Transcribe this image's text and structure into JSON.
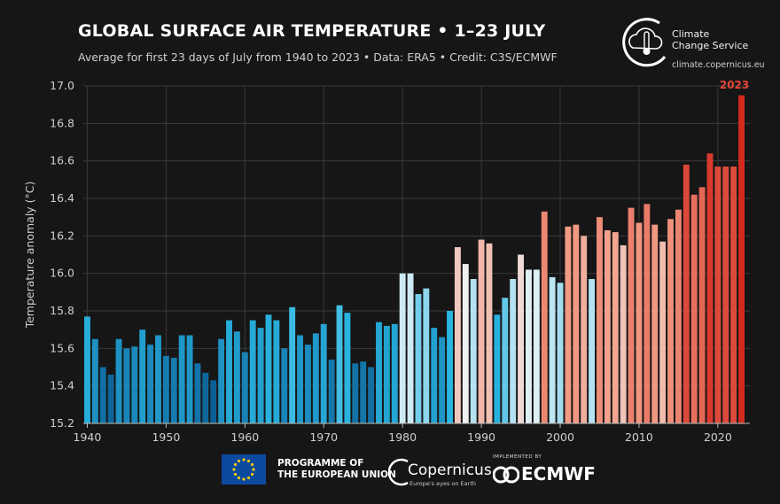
{
  "header": {
    "title": "GLOBAL SURFACE AIR TEMPERATURE • 1–23 JULY",
    "subtitle": "Average for first 23 days of July from 1940 to 2023 • Data: ERA5 • Credit: C3S/ECMWF"
  },
  "branding": {
    "c3s_name_line1": "Climate",
    "c3s_name_line2": "Change Service",
    "c3s_url": "climate.copernicus.eu"
  },
  "footer": {
    "eu_line1": "PROGRAMME OF",
    "eu_line2": "THE EUROPEAN UNION",
    "copernicus_name": "Copernicus",
    "copernicus_tagline": "Europe's eyes on Earth",
    "ecmwf_implemented": "IMPLEMENTED BY",
    "ecmwf_name": "ECMWF"
  },
  "chart_data": {
    "type": "bar",
    "title": "GLOBAL SURFACE AIR TEMPERATURE • 1–23 JULY",
    "ylabel": "Temperature anomaly (°C)",
    "xlabel": "",
    "ylim": [
      15.2,
      17.0
    ],
    "yticks": [
      15.2,
      15.4,
      15.6,
      15.8,
      16.0,
      16.2,
      16.4,
      16.6,
      16.8,
      17.0
    ],
    "xticks": [
      1940,
      1950,
      1960,
      1970,
      1980,
      1990,
      2000,
      2010,
      2020
    ],
    "grid": true,
    "highlight_label": "2023",
    "colors": {
      "background": "#161616",
      "grid": "#3a3a3a",
      "cold": "#0b5e96",
      "mid_cold": "#2ab6e2",
      "neutral": "#eef4f8",
      "warm": "#f29d86",
      "hot": "#d42a1e",
      "highlight_text": "#e8463a"
    },
    "x": [
      1940,
      1941,
      1942,
      1943,
      1944,
      1945,
      1946,
      1947,
      1948,
      1949,
      1950,
      1951,
      1952,
      1953,
      1954,
      1955,
      1956,
      1957,
      1958,
      1959,
      1960,
      1961,
      1962,
      1963,
      1964,
      1965,
      1966,
      1967,
      1968,
      1969,
      1970,
      1971,
      1972,
      1973,
      1974,
      1975,
      1976,
      1977,
      1978,
      1979,
      1980,
      1981,
      1982,
      1983,
      1984,
      1985,
      1986,
      1987,
      1988,
      1989,
      1990,
      1991,
      1992,
      1993,
      1994,
      1995,
      1996,
      1997,
      1998,
      1999,
      2000,
      2001,
      2002,
      2003,
      2004,
      2005,
      2006,
      2007,
      2008,
      2009,
      2010,
      2011,
      2012,
      2013,
      2014,
      2015,
      2016,
      2017,
      2018,
      2019,
      2020,
      2021,
      2022,
      2023
    ],
    "values": [
      15.77,
      15.65,
      15.5,
      15.46,
      15.65,
      15.6,
      15.61,
      15.7,
      15.62,
      15.67,
      15.56,
      15.55,
      15.67,
      15.67,
      15.52,
      15.47,
      15.43,
      15.65,
      15.75,
      15.69,
      15.58,
      15.75,
      15.71,
      15.78,
      15.75,
      15.6,
      15.82,
      15.67,
      15.62,
      15.68,
      15.73,
      15.54,
      15.83,
      15.79,
      15.52,
      15.53,
      15.5,
      15.74,
      15.72,
      15.73,
      16.0,
      16.0,
      15.89,
      15.92,
      15.71,
      15.66,
      15.8,
      16.14,
      16.05,
      15.97,
      16.18,
      16.16,
      15.78,
      15.87,
      15.97,
      16.1,
      16.02,
      16.02,
      16.33,
      15.98,
      15.95,
      16.25,
      16.26,
      16.2,
      15.97,
      16.3,
      16.23,
      16.22,
      16.15,
      16.35,
      16.27,
      16.37,
      16.26,
      16.17,
      16.29,
      16.34,
      16.58,
      16.42,
      16.46,
      16.64,
      16.57,
      16.57,
      16.57,
      16.95
    ]
  }
}
